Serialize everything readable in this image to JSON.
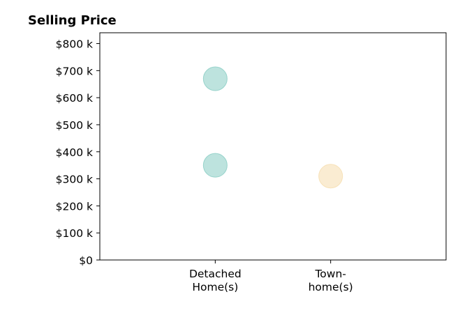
{
  "chart_data": {
    "type": "scatter",
    "title": "Selling Price",
    "xlabel": "",
    "ylabel": "",
    "categories": [
      "Detached\nHome(s)",
      "Town-\nhome(s)"
    ],
    "y_ticks": [
      "$0",
      "$100 k",
      "$200 k",
      "$300 k",
      "$400 k",
      "$500 k",
      "$600 k",
      "$700 k",
      "$800 k"
    ],
    "y_tick_values": [
      0,
      100,
      200,
      300,
      400,
      500,
      600,
      700,
      800
    ],
    "ylim": [
      0,
      840
    ],
    "xlim": [
      -1,
      2
    ],
    "grid": false,
    "points": [
      {
        "category": "Detached\nHome(s)",
        "y": 670,
        "color": "#8ecfc7"
      },
      {
        "category": "Detached\nHome(s)",
        "y": 350,
        "color": "#8ecfc7"
      },
      {
        "category": "Town-\nhome(s)",
        "y": 310,
        "color": "#f6dfb2"
      }
    ]
  },
  "colors": {
    "detached": "#8ecfc7",
    "townhome": "#f6dfb2"
  }
}
